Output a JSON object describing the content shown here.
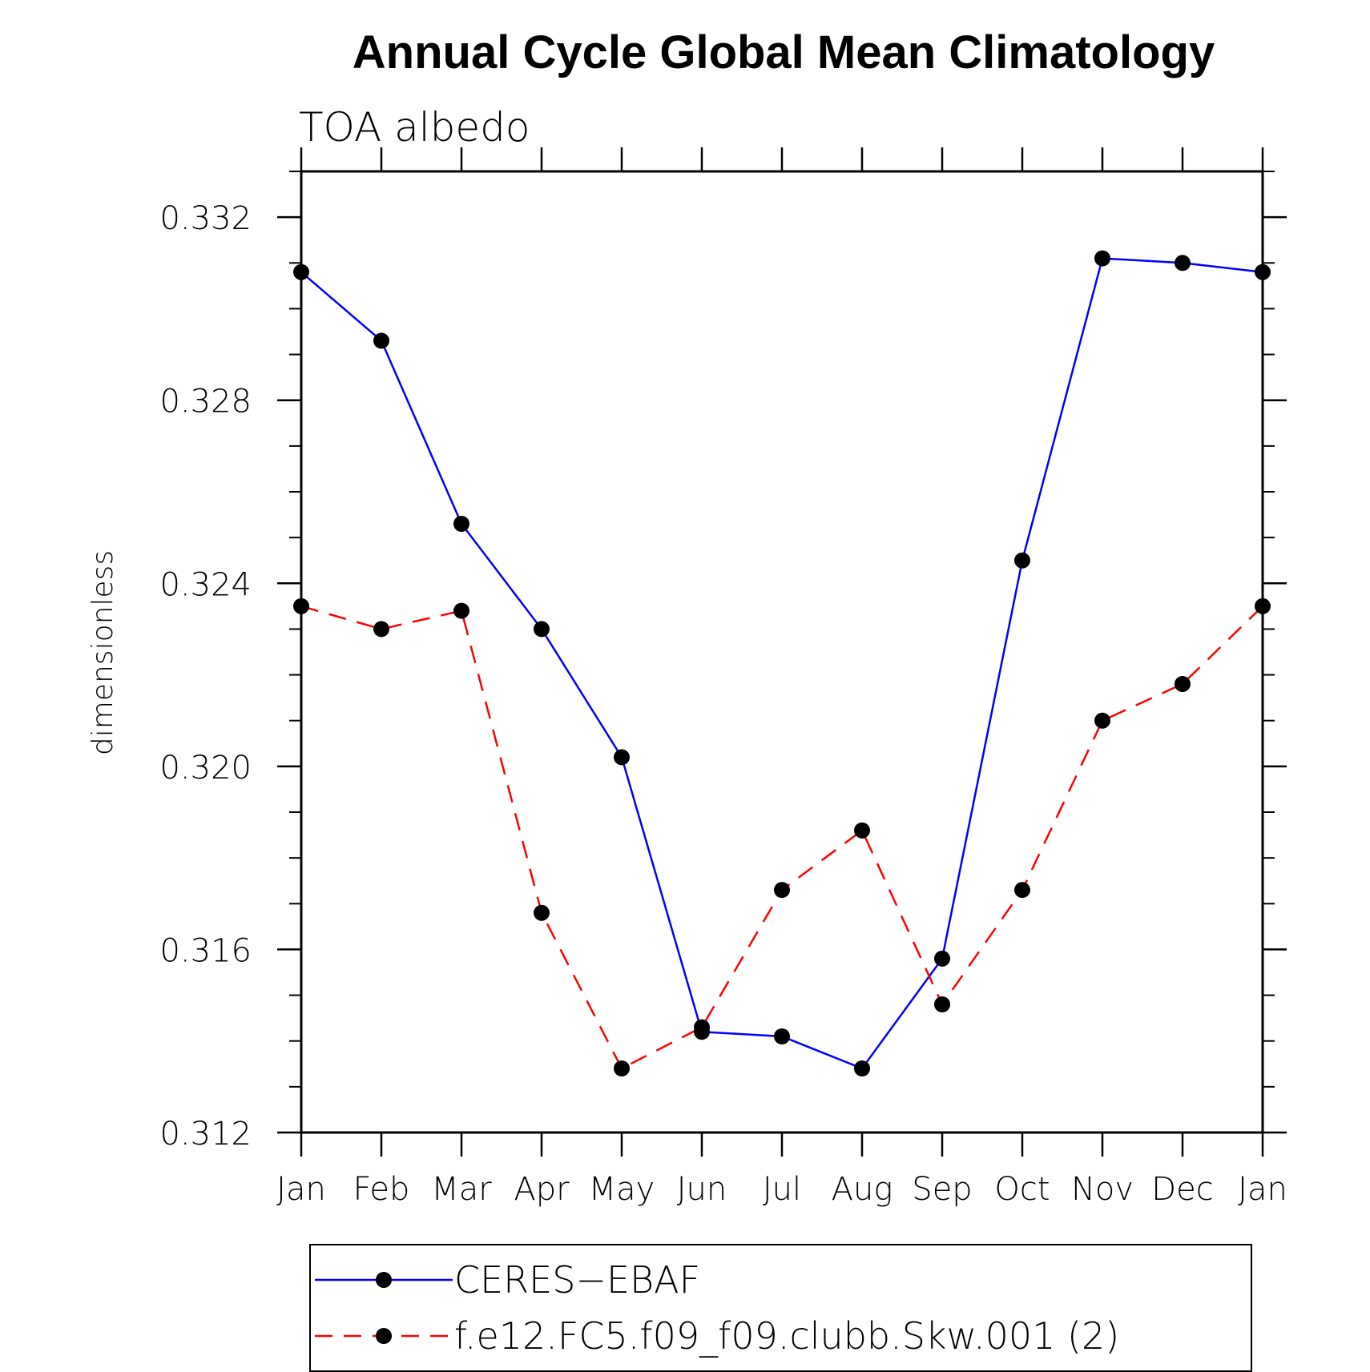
{
  "chart_data": {
    "type": "line",
    "title": "Annual Cycle Global Mean Climatology",
    "subtitle": "TOA albedo",
    "xlabel": "",
    "ylabel": "dimensionless",
    "categories": [
      "Jan",
      "Feb",
      "Mar",
      "Apr",
      "May",
      "Jun",
      "Jul",
      "Aug",
      "Sep",
      "Oct",
      "Nov",
      "Dec",
      "Jan"
    ],
    "ylim": [
      0.312,
      0.333
    ],
    "yticks": [
      "0.312",
      "0.316",
      "0.320",
      "0.324",
      "0.328",
      "0.332"
    ],
    "ytick_values": [
      0.312,
      0.316,
      0.32,
      0.324,
      0.328,
      0.332
    ],
    "yminor_step": 0.001,
    "grid": false,
    "legend_position": "bottom",
    "series": [
      {
        "name": "CERES−EBAF",
        "color": "#0000ff",
        "dashed": false,
        "values": [
          0.3308,
          0.3293,
          0.3253,
          0.323,
          0.3202,
          0.3142,
          0.3141,
          0.3134,
          0.3158,
          0.3245,
          0.3311,
          0.331,
          0.3308
        ]
      },
      {
        "name": "f.e12.FC5.f09_f09.clubb.Skw.001 (2)",
        "color": "#ff0000",
        "dashed": true,
        "values": [
          0.3235,
          0.323,
          0.3234,
          0.3168,
          0.3134,
          0.3143,
          0.3173,
          0.3186,
          0.3148,
          0.3173,
          0.321,
          0.3218,
          0.3235
        ]
      }
    ],
    "marker_color": "#000000",
    "axis_color": "#000000"
  }
}
